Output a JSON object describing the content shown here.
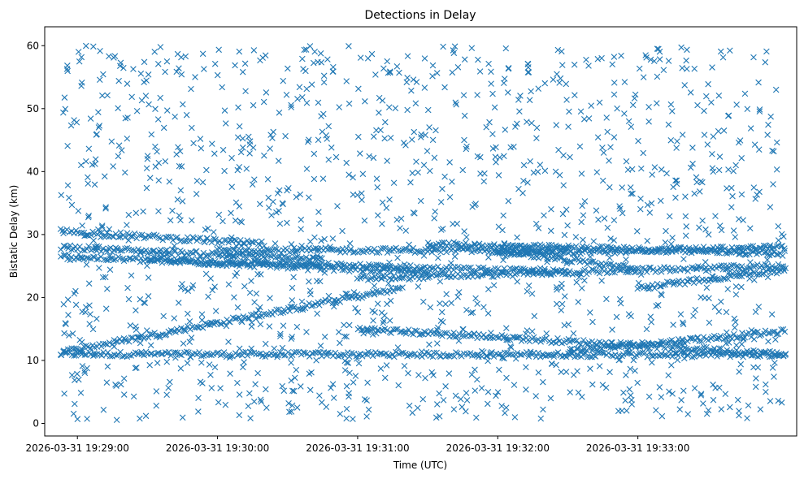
{
  "chart_data": {
    "type": "scatter",
    "title": "Detections in Delay",
    "xlabel": "Time (UTC)",
    "ylabel": "Bistatic Delay (km)",
    "marker": "x",
    "color": "#1f77b4",
    "grid": false,
    "legend": "none",
    "x_unit": "UTC timestamp",
    "xlim": [
      "2026-03-31 19:28:46",
      "2026-03-31 19:34:08"
    ],
    "ylim": [
      -2,
      63
    ],
    "xticks": [
      "2026-03-31 19:29:00",
      "2026-03-31 19:30:00",
      "2026-03-31 19:31:00",
      "2026-03-31 19:32:00",
      "2026-03-31 19:33:00"
    ],
    "yticks": [
      0,
      10,
      20,
      30,
      40,
      50,
      60
    ],
    "tracks": [
      {
        "start": "2026-03-31 19:28:53",
        "end": "2026-03-31 19:34:03",
        "y_start": 11.0,
        "y_end": 10.9
      },
      {
        "start": "2026-03-31 19:28:53",
        "end": "2026-03-31 19:31:19",
        "y_start": 11.3,
        "y_end": 21.5
      },
      {
        "start": "2026-03-31 19:31:00",
        "end": "2026-03-31 19:34:03",
        "y_start": 15.0,
        "y_end": 11.0
      },
      {
        "start": "2026-03-31 19:32:30",
        "end": "2026-03-31 19:34:03",
        "y_start": 11.5,
        "y_end": 14.6
      },
      {
        "start": "2026-03-31 19:28:53",
        "end": "2026-03-31 19:30:45",
        "y_start": 28.0,
        "y_end": 26.0
      },
      {
        "start": "2026-03-31 19:28:53",
        "end": "2026-03-31 19:31:30",
        "y_start": 26.5,
        "y_end": 24.0
      },
      {
        "start": "2026-03-31 19:28:53",
        "end": "2026-03-31 19:30:20",
        "y_start": 30.5,
        "y_end": 28.5
      },
      {
        "start": "2026-03-31 19:29:30",
        "end": "2026-03-31 19:32:30",
        "y_start": 26.0,
        "y_end": 24.0
      },
      {
        "start": "2026-03-31 19:30:00",
        "end": "2026-03-31 19:32:30",
        "y_start": 27.5,
        "y_end": 27.5
      },
      {
        "start": "2026-03-31 19:31:00",
        "end": "2026-03-31 19:34:03",
        "y_start": 23.0,
        "y_end": 25.0
      },
      {
        "start": "2026-03-31 19:31:30",
        "end": "2026-03-31 19:34:03",
        "y_start": 28.5,
        "y_end": 27.0
      },
      {
        "start": "2026-03-31 19:32:00",
        "end": "2026-03-31 19:33:00",
        "y_start": 27.5,
        "y_end": 24.5
      },
      {
        "start": "2026-03-31 19:33:00",
        "end": "2026-03-31 19:34:03",
        "y_start": 21.5,
        "y_end": 24.5
      },
      {
        "start": "2026-03-31 19:32:00",
        "end": "2026-03-31 19:34:03",
        "y_start": 27.0,
        "y_end": 28.0
      }
    ],
    "noise_range": {
      "start": "2026-03-31 19:28:53",
      "end": "2026-03-31 19:34:03",
      "y_min": 0.5,
      "y_max": 60
    }
  }
}
